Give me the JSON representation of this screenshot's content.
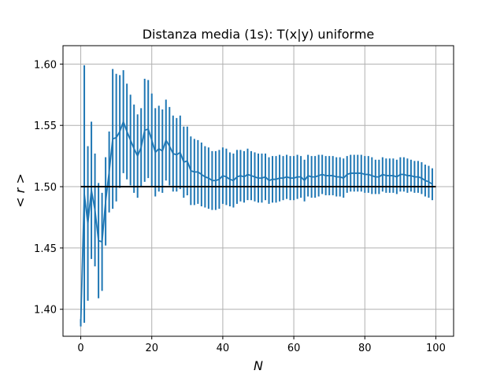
{
  "chart_data": {
    "type": "line",
    "title": "Distanza media (1s): T(x|y) uniforme",
    "xlabel": "N",
    "ylabel": "< r >",
    "xlim": [
      -5,
      105
    ],
    "ylim": [
      1.378,
      1.615
    ],
    "xticks": [
      0,
      20,
      40,
      60,
      80,
      100
    ],
    "yticks": [
      1.4,
      1.45,
      1.5,
      1.55,
      1.6
    ],
    "xtick_labels": [
      "0",
      "20",
      "40",
      "60",
      "80",
      "100"
    ],
    "ytick_labels": [
      "1.40",
      "1.45",
      "1.50",
      "1.55",
      "1.60"
    ],
    "grid": true,
    "colors": {
      "series": "#1f77b4",
      "reference": "#000000",
      "grid": "#b0b0b0"
    },
    "series": [
      {
        "x": [
          0,
          1,
          2,
          3,
          4,
          5,
          6,
          7,
          8,
          9,
          10,
          11,
          12,
          13,
          14,
          15,
          16,
          17,
          18,
          19,
          20,
          21,
          22,
          23,
          24,
          25,
          26,
          27,
          28,
          29,
          30,
          31,
          32,
          33,
          34,
          35,
          36,
          37,
          38,
          39,
          40,
          41,
          42,
          43,
          44,
          45,
          46,
          47,
          48,
          49,
          50,
          51,
          52,
          53,
          54,
          55,
          56,
          57,
          58,
          59,
          60,
          61,
          62,
          63,
          64,
          65,
          66,
          67,
          68,
          69,
          70,
          71,
          72,
          73,
          74,
          75,
          76,
          77,
          78,
          79,
          80,
          81,
          82,
          83,
          84,
          85,
          86,
          87,
          88,
          89,
          90,
          91,
          92,
          93,
          94,
          95,
          96,
          97,
          98,
          99
        ],
        "y": [
          1.389,
          1.494,
          1.47,
          1.497,
          1.481,
          1.456,
          1.455,
          1.488,
          1.512,
          1.539,
          1.54,
          1.545,
          1.553,
          1.545,
          1.538,
          1.531,
          1.525,
          1.532,
          1.546,
          1.547,
          1.538,
          1.528,
          1.531,
          1.529,
          1.538,
          1.533,
          1.527,
          1.526,
          1.528,
          1.52,
          1.521,
          1.513,
          1.512,
          1.512,
          1.51,
          1.508,
          1.507,
          1.505,
          1.505,
          1.506,
          1.509,
          1.508,
          1.506,
          1.505,
          1.508,
          1.509,
          1.508,
          1.51,
          1.509,
          1.508,
          1.507,
          1.507,
          1.508,
          1.505,
          1.506,
          1.506,
          1.507,
          1.507,
          1.508,
          1.507,
          1.507,
          1.508,
          1.508,
          1.505,
          1.509,
          1.508,
          1.508,
          1.509,
          1.51,
          1.509,
          1.509,
          1.509,
          1.508,
          1.508,
          1.507,
          1.51,
          1.511,
          1.511,
          1.511,
          1.511,
          1.51,
          1.51,
          1.509,
          1.508,
          1.508,
          1.51,
          1.509,
          1.509,
          1.509,
          1.508,
          1.51,
          1.51,
          1.509,
          1.509,
          1.508,
          1.508,
          1.507,
          1.505,
          1.504,
          1.502
        ],
        "err": [
          0.003,
          0.105,
          0.063,
          0.056,
          0.046,
          0.047,
          0.04,
          0.036,
          0.033,
          0.057,
          0.052,
          0.046,
          0.042,
          0.039,
          0.037,
          0.036,
          0.034,
          0.032,
          0.042,
          0.04,
          0.038,
          0.036,
          0.035,
          0.034,
          0.033,
          0.032,
          0.031,
          0.03,
          0.03,
          0.029,
          0.028,
          0.028,
          0.027,
          0.026,
          0.026,
          0.025,
          0.025,
          0.024,
          0.024,
          0.024,
          0.023,
          0.023,
          0.022,
          0.022,
          0.022,
          0.021,
          0.021,
          0.021,
          0.02,
          0.02,
          0.02,
          0.02,
          0.019,
          0.019,
          0.019,
          0.019,
          0.019,
          0.018,
          0.018,
          0.018,
          0.018,
          0.018,
          0.017,
          0.017,
          0.017,
          0.017,
          0.017,
          0.017,
          0.016,
          0.016,
          0.016,
          0.016,
          0.016,
          0.016,
          0.016,
          0.015,
          0.015,
          0.015,
          0.015,
          0.015,
          0.015,
          0.015,
          0.015,
          0.014,
          0.014,
          0.014,
          0.014,
          0.014,
          0.014,
          0.014,
          0.014,
          0.014,
          0.014,
          0.013,
          0.013,
          0.013,
          0.013,
          0.013,
          0.013,
          0.013
        ]
      }
    ],
    "reference_line": {
      "x": [
        0,
        100
      ],
      "y": 1.5
    }
  }
}
